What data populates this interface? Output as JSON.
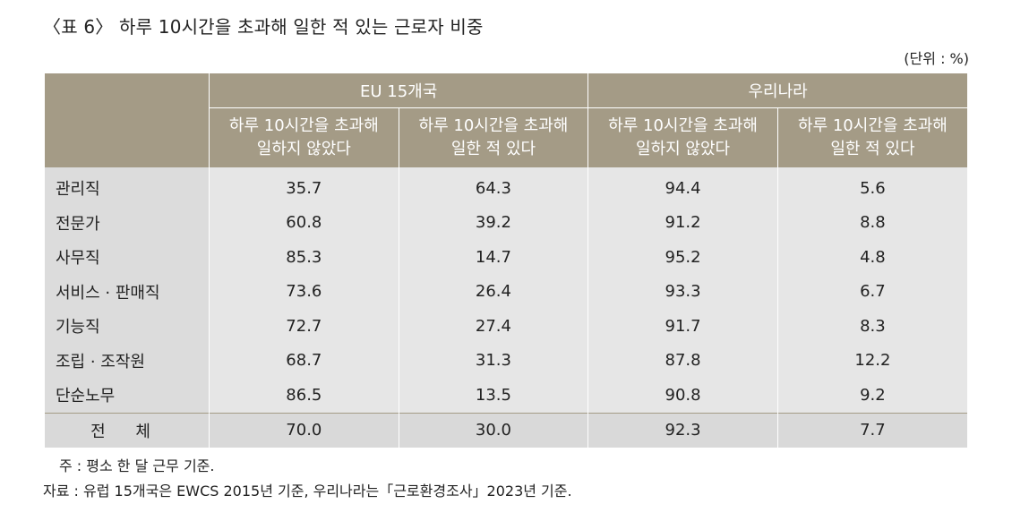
{
  "title": "〈표 6〉 하루 10시간을 초과해 일한 적 있는 근로자 비중",
  "unit": "(단위 : %)",
  "header": {
    "group1": "EU 15개국",
    "group2": "우리나라",
    "sub_not_line1": "하루 10시간을 초과해",
    "sub_not_line2": "일하지 않았다",
    "sub_yes_line1": "하루 10시간을 초과해",
    "sub_yes_line2": "일한 적 있다"
  },
  "rows": [
    {
      "label": "관리직",
      "v": [
        "35.7",
        "64.3",
        "94.4",
        "5.6"
      ]
    },
    {
      "label": "전문가",
      "v": [
        "60.8",
        "39.2",
        "91.2",
        "8.8"
      ]
    },
    {
      "label": "사무직",
      "v": [
        "85.3",
        "14.7",
        "95.2",
        "4.8"
      ]
    },
    {
      "label": "서비스 · 판매직",
      "v": [
        "73.6",
        "26.4",
        "93.3",
        "6.7"
      ]
    },
    {
      "label": "기능직",
      "v": [
        "72.7",
        "27.4",
        "91.7",
        "8.3"
      ]
    },
    {
      "label": "조립 · 조작원",
      "v": [
        "68.7",
        "31.3",
        "87.8",
        "12.2"
      ]
    },
    {
      "label": "단순노무",
      "v": [
        "86.5",
        "13.5",
        "90.8",
        "9.2"
      ]
    }
  ],
  "total": {
    "label": "전 체",
    "v": [
      "70.0",
      "30.0",
      "92.3",
      "7.7"
    ]
  },
  "note": "주 : 평소 한 달 근무 기준.",
  "source": "자료 : 유럽 15개국은 EWCS 2015년 기준, 우리나라는「근로환경조사」2023년 기준.",
  "colors": {
    "header_bg": "#a49b86",
    "cell_bg": "#e6e6e6"
  }
}
